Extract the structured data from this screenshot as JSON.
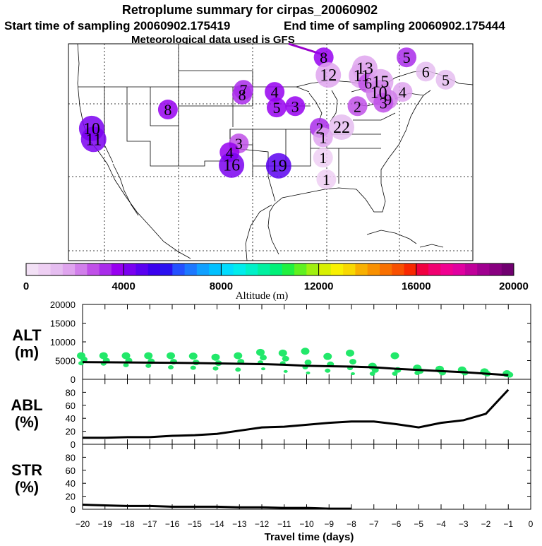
{
  "header": {
    "title": "Retroplume summary for cirpas_20060902",
    "start_label": "Start time of sampling 20060902.175419",
    "end_label": "End time of sampling 20060902.175444",
    "met_label": "Meteorological data used is GFS"
  },
  "map": {
    "name": "Continental US retroplume map",
    "path_color": "#9900cc",
    "plume_markers": [
      {
        "label": "8",
        "lon": -87.5,
        "lat": 50.0,
        "alt": 3600
      },
      {
        "label": "5",
        "lon": -75.0,
        "lat": 50.0,
        "alt": 3400
      },
      {
        "label": "12",
        "lon": -86.8,
        "lat": 47.4,
        "alt": 1700
      },
      {
        "label": "11",
        "lon": -81.8,
        "lat": 47.3,
        "alt": 1500
      },
      {
        "label": "13",
        "lon": -81.3,
        "lat": 48.4,
        "alt": 1600
      },
      {
        "label": "6",
        "lon": -72.1,
        "lat": 47.9,
        "alt": 1200
      },
      {
        "label": "5",
        "lon": -69.1,
        "lat": 46.7,
        "alt": 1000
      },
      {
        "label": "6",
        "lon": -80.8,
        "lat": 46.2,
        "alt": 2600
      },
      {
        "label": "15",
        "lon": -78.9,
        "lat": 46.4,
        "alt": 1900
      },
      {
        "label": "7",
        "lon": -99.6,
        "lat": 45.2,
        "alt": 3200
      },
      {
        "label": "8",
        "lon": -99.8,
        "lat": 44.5,
        "alt": 3000
      },
      {
        "label": "4",
        "lon": -94.9,
        "lat": 44.9,
        "alt": 3800
      },
      {
        "label": "10",
        "lon": -79.2,
        "lat": 44.8,
        "alt": 2400
      },
      {
        "label": "4",
        "lon": -75.6,
        "lat": 44.9,
        "alt": 1700
      },
      {
        "label": "9",
        "lon": -77.8,
        "lat": 43.8,
        "alt": 2200
      },
      {
        "label": "3",
        "lon": -78.5,
        "lat": 43.3,
        "alt": 2600
      },
      {
        "label": "2",
        "lon": -82.4,
        "lat": 42.8,
        "alt": 2500
      },
      {
        "label": "5",
        "lon": -94.6,
        "lat": 42.6,
        "alt": 3500
      },
      {
        "label": "3",
        "lon": -91.8,
        "lat": 42.8,
        "alt": 3700
      },
      {
        "label": "8",
        "lon": -111.0,
        "lat": 42.3,
        "alt": 3900
      },
      {
        "label": "10",
        "lon": -122.5,
        "lat": 39.5,
        "alt": 4200
      },
      {
        "label": "11",
        "lon": -122.2,
        "lat": 37.9,
        "alt": 4300
      },
      {
        "label": "2",
        "lon": -88.1,
        "lat": 39.6,
        "alt": 3300
      },
      {
        "label": "22",
        "lon": -84.8,
        "lat": 39.7,
        "alt": 1200
      },
      {
        "label": "1",
        "lon": -87.6,
        "lat": 38.2,
        "alt": 1500
      },
      {
        "label": "3",
        "lon": -100.3,
        "lat": 37.3,
        "alt": 2800
      },
      {
        "label": "4",
        "lon": -101.7,
        "lat": 36.0,
        "alt": 3600
      },
      {
        "label": "1",
        "lon": -87.6,
        "lat": 35.2,
        "alt": 900
      },
      {
        "label": "16",
        "lon": -101.4,
        "lat": 34.1,
        "alt": 4300
      },
      {
        "label": "19",
        "lon": -94.3,
        "lat": 34.0,
        "alt": 4600
      },
      {
        "label": "1",
        "lon": -87.1,
        "lat": 32.0,
        "alt": 600
      }
    ]
  },
  "colorbar": {
    "title": "Altitude (m)",
    "min": 0,
    "max": 20000,
    "ticks": [
      "0",
      "4000",
      "8000",
      "12000",
      "16000",
      "20000"
    ],
    "colors": [
      "#f2e0f5",
      "#eecff3",
      "#e5bdf0",
      "#dfa4ee",
      "#d17fea",
      "#c050e8",
      "#a92cea",
      "#9700f0",
      "#7a00f0",
      "#5a00f0",
      "#3a00ee",
      "#2a10f0",
      "#2450ff",
      "#1c78ff",
      "#10a0ff",
      "#00c0ff",
      "#00dcff",
      "#00ecec",
      "#00f0c8",
      "#00f0a0",
      "#00f078",
      "#20f040",
      "#60f020",
      "#a0f010",
      "#d8f000",
      "#f8f000",
      "#f8d800",
      "#f8b000",
      "#f89000",
      "#f87000",
      "#f85000",
      "#f82800",
      "#f00040",
      "#f00070",
      "#f00090",
      "#e000a0",
      "#c0009a",
      "#a00090",
      "#880080",
      "#700070"
    ]
  },
  "chart_data": [
    {
      "type": "scatter",
      "name": "ALT",
      "ylabel": "ALT (m)",
      "ylabel_lines": [
        "ALT",
        "(m)"
      ],
      "xlim": [
        -20,
        0
      ],
      "ylim": [
        0,
        20000
      ],
      "yticks": [
        "20000",
        "15000",
        "10000",
        "5000",
        "0"
      ],
      "mean_line": {
        "x": [
          -20,
          -19,
          -18,
          -17,
          -16,
          -15,
          -14,
          -13,
          -12,
          -11,
          -10,
          -9,
          -8,
          -7,
          -6,
          -5,
          -4,
          -3,
          -2,
          -1
        ],
        "y": [
          4600,
          4550,
          4500,
          4450,
          4400,
          4350,
          4250,
          4150,
          4050,
          3900,
          3600,
          3500,
          3400,
          3200,
          2800,
          2500,
          2200,
          1900,
          1500,
          1100
        ]
      },
      "points": [
        {
          "x": -20,
          "y": [
            6300,
            5300,
            4300
          ]
        },
        {
          "x": -19,
          "y": [
            6300,
            5000,
            4200
          ]
        },
        {
          "x": -18,
          "y": [
            6300,
            5000,
            3800
          ]
        },
        {
          "x": -17,
          "y": [
            6300,
            4800,
            3600
          ]
        },
        {
          "x": -16,
          "y": [
            6300,
            4700,
            3200
          ]
        },
        {
          "x": -15,
          "y": [
            6200,
            4500,
            3100
          ]
        },
        {
          "x": -14,
          "y": [
            5900,
            4300,
            2900
          ]
        },
        {
          "x": -13,
          "y": [
            6300,
            4700,
            2600
          ]
        },
        {
          "x": -12,
          "y": [
            7200,
            5800,
            4500,
            2800
          ]
        },
        {
          "x": -11,
          "y": [
            7000,
            5500,
            4300,
            2100
          ]
        },
        {
          "x": -10,
          "y": [
            7500,
            4500,
            3200,
            1700
          ]
        },
        {
          "x": -9,
          "y": [
            6100,
            4000,
            2300
          ]
        },
        {
          "x": -8,
          "y": [
            7000,
            4700,
            3000,
            1500
          ]
        },
        {
          "x": -7,
          "y": [
            3500,
            2500,
            1500
          ]
        },
        {
          "x": -6,
          "y": [
            6300,
            2500,
            1500
          ]
        },
        {
          "x": -5,
          "y": [
            3000,
            2200,
            1700
          ]
        },
        {
          "x": -4,
          "y": [
            2700,
            1800
          ]
        },
        {
          "x": -3,
          "y": [
            2500,
            1800
          ]
        },
        {
          "x": -2,
          "y": [
            2000,
            1500
          ]
        },
        {
          "x": -1,
          "y": [
            1500,
            1200
          ]
        }
      ]
    },
    {
      "type": "line",
      "name": "ABL",
      "ylabel": "ABL (%)",
      "ylabel_lines": [
        "ABL",
        "(%)"
      ],
      "xlim": [
        -20,
        0
      ],
      "ylim": [
        0,
        100
      ],
      "yticks": [
        "80",
        "60",
        "40",
        "20",
        "0"
      ],
      "x": [
        -20,
        -19,
        -18,
        -17,
        -16,
        -15,
        -14,
        -13,
        -12,
        -11,
        -10,
        -9,
        -8,
        -7,
        -6,
        -5,
        -4,
        -3,
        -2,
        -1
      ],
      "y": [
        10,
        10,
        11,
        11,
        13,
        14,
        16,
        21,
        26,
        27,
        30,
        33,
        35,
        35,
        31,
        26,
        33,
        37,
        47,
        84
      ]
    },
    {
      "type": "line",
      "name": "STR",
      "ylabel": "STR (%)",
      "ylabel_lines": [
        "STR",
        "(%)"
      ],
      "xlim": [
        -20,
        0
      ],
      "ylim": [
        0,
        100
      ],
      "yticks": [
        "80",
        "60",
        "40",
        "20",
        "0"
      ],
      "x": [
        -20,
        -19,
        -18,
        -17,
        -16,
        -15,
        -14,
        -13,
        -12,
        -11,
        -10,
        -9,
        -8
      ],
      "y": [
        7,
        6,
        5,
        5,
        4,
        4,
        4,
        3,
        3,
        2,
        2,
        1,
        1
      ]
    }
  ],
  "xaxis": {
    "title": "Travel time (days)",
    "ticks": [
      {
        "v": -20,
        "label": "−20"
      },
      {
        "v": -19,
        "label": "−19"
      },
      {
        "v": -18,
        "label": "−18"
      },
      {
        "v": -17,
        "label": "−17"
      },
      {
        "v": -16,
        "label": "−16"
      },
      {
        "v": -15,
        "label": "−15"
      },
      {
        "v": -14,
        "label": "−14"
      },
      {
        "v": -13,
        "label": "−13"
      },
      {
        "v": -12,
        "label": "−12"
      },
      {
        "v": -11,
        "label": "−11"
      },
      {
        "v": -10,
        "label": "−10"
      },
      {
        "v": -9,
        "label": "−9"
      },
      {
        "v": -8,
        "label": "−8"
      },
      {
        "v": -7,
        "label": "−7"
      },
      {
        "v": -6,
        "label": "−6"
      },
      {
        "v": -5,
        "label": "−5"
      },
      {
        "v": -4,
        "label": "−4"
      },
      {
        "v": -3,
        "label": "−3"
      },
      {
        "v": -2,
        "label": "−2"
      },
      {
        "v": -1,
        "label": "−1"
      },
      {
        "v": 0,
        "label": "0"
      }
    ]
  },
  "colors": {
    "scatter": "#22e86a",
    "line": "#000000",
    "frame": "#000000"
  }
}
